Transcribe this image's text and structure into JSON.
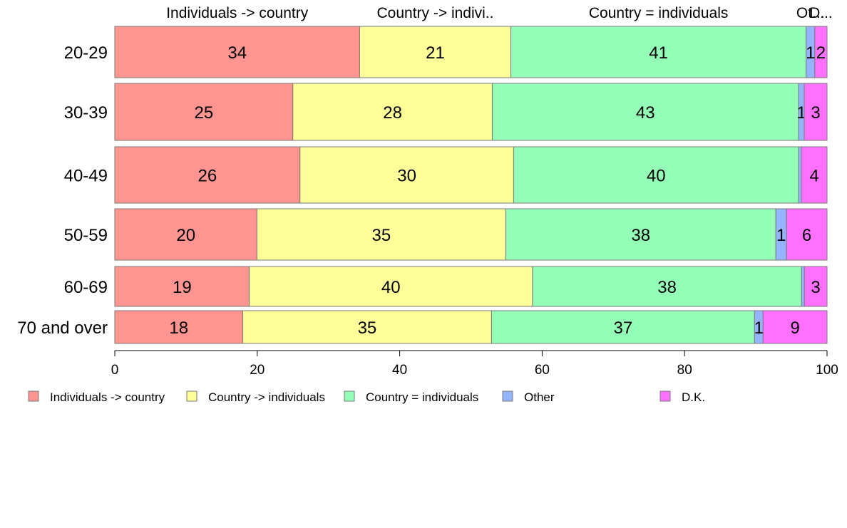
{
  "chart_data": {
    "type": "bar",
    "orientation": "horizontal",
    "stacked": "percent",
    "categories": [
      "20-29",
      "30-39",
      "40-49",
      "50-59",
      "60-69",
      "70 and over"
    ],
    "series": [
      {
        "name": "Individuals -> country",
        "color": "#ff9490",
        "values": [
          34,
          25,
          26,
          20,
          19,
          18
        ],
        "labels": [
          "34",
          "25",
          "26",
          "20",
          "19",
          "18"
        ]
      },
      {
        "name": "Country -> individuals",
        "color": "#ffff99",
        "values": [
          21,
          28,
          30,
          35,
          40,
          35
        ],
        "labels": [
          "21",
          "28",
          "30",
          "35",
          "40",
          "35"
        ]
      },
      {
        "name": "Country = individuals",
        "color": "#94ffb6",
        "values": [
          41,
          43,
          40,
          38,
          38,
          37
        ],
        "labels": [
          "41",
          "43",
          "40",
          "38",
          "38",
          "37"
        ]
      },
      {
        "name": "Other",
        "color": "#94b4ff",
        "values": [
          1.2,
          0.8,
          0.4,
          1.5,
          0.4,
          1.2
        ],
        "labels": [
          "1",
          "1",
          "",
          "1",
          "",
          "1"
        ]
      },
      {
        "name": "D.K.",
        "color": "#ff70ff",
        "values": [
          1.7,
          3.2,
          3.6,
          5.7,
          3.2,
          9.0
        ],
        "labels": [
          "2",
          "3",
          "4",
          "6",
          "3",
          "9"
        ]
      }
    ],
    "top_labels": [
      "Individuals -> country",
      "Country -> indivi..",
      "Country = individuals",
      "Ot...",
      "D..."
    ],
    "xlim": [
      0,
      100
    ],
    "xticks": [
      0,
      20,
      40,
      60,
      80,
      100
    ],
    "legend_position": "bottom",
    "grid": false
  }
}
